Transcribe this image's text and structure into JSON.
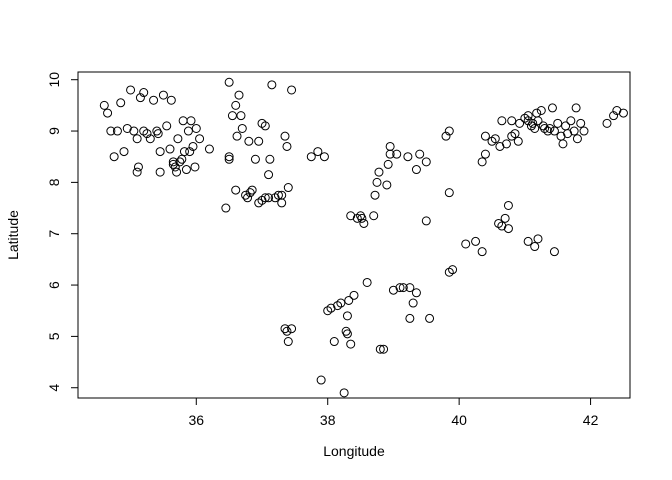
{
  "chart_data": {
    "type": "scatter",
    "title": "",
    "xlabel": "Longitude",
    "ylabel": "Latitude",
    "xlim": [
      34.2,
      42.6
    ],
    "ylim": [
      3.8,
      10.15
    ],
    "xticks": [
      36,
      38,
      40,
      42
    ],
    "yticks": [
      4,
      5,
      6,
      7,
      8,
      9,
      10
    ],
    "grid": false,
    "legend": "none",
    "marker": "open-circle",
    "points": [
      [
        34.6,
        9.5
      ],
      [
        34.65,
        9.35
      ],
      [
        34.7,
        9.0
      ],
      [
        34.75,
        8.5
      ],
      [
        34.8,
        9.0
      ],
      [
        34.85,
        9.55
      ],
      [
        34.9,
        8.6
      ],
      [
        34.95,
        9.05
      ],
      [
        35.0,
        9.8
      ],
      [
        35.05,
        9.0
      ],
      [
        35.1,
        8.85
      ],
      [
        35.1,
        8.2
      ],
      [
        35.12,
        8.3
      ],
      [
        35.15,
        9.65
      ],
      [
        35.2,
        9.75
      ],
      [
        35.2,
        9.0
      ],
      [
        35.25,
        8.95
      ],
      [
        35.3,
        8.85
      ],
      [
        35.35,
        9.6
      ],
      [
        35.4,
        9.0
      ],
      [
        35.42,
        8.95
      ],
      [
        35.45,
        8.6
      ],
      [
        35.45,
        8.2
      ],
      [
        35.5,
        9.7
      ],
      [
        35.55,
        9.1
      ],
      [
        35.6,
        8.65
      ],
      [
        35.62,
        9.6
      ],
      [
        35.65,
        8.4
      ],
      [
        35.65,
        8.35
      ],
      [
        35.68,
        8.3
      ],
      [
        35.7,
        8.2
      ],
      [
        35.72,
        8.85
      ],
      [
        35.75,
        8.4
      ],
      [
        35.78,
        8.45
      ],
      [
        35.8,
        9.2
      ],
      [
        35.82,
        8.6
      ],
      [
        35.85,
        8.25
      ],
      [
        35.88,
        9.0
      ],
      [
        35.9,
        8.6
      ],
      [
        35.92,
        9.2
      ],
      [
        35.95,
        8.7
      ],
      [
        35.98,
        8.3
      ],
      [
        36.0,
        9.05
      ],
      [
        36.05,
        8.85
      ],
      [
        36.2,
        8.65
      ],
      [
        36.5,
        9.95
      ],
      [
        36.5,
        8.5
      ],
      [
        36.5,
        8.45
      ],
      [
        36.45,
        7.5
      ],
      [
        36.55,
        9.3
      ],
      [
        36.6,
        9.5
      ],
      [
        36.62,
        8.9
      ],
      [
        36.65,
        9.7
      ],
      [
        36.68,
        9.3
      ],
      [
        36.7,
        9.05
      ],
      [
        36.6,
        7.85
      ],
      [
        36.75,
        7.75
      ],
      [
        36.78,
        7.7
      ],
      [
        36.8,
        8.8
      ],
      [
        36.82,
        7.8
      ],
      [
        36.85,
        7.85
      ],
      [
        36.9,
        8.45
      ],
      [
        36.95,
        8.8
      ],
      [
        36.95,
        7.6
      ],
      [
        37.0,
        9.15
      ],
      [
        37.0,
        7.65
      ],
      [
        37.05,
        9.1
      ],
      [
        37.05,
        7.7
      ],
      [
        37.1,
        7.7
      ],
      [
        37.1,
        8.15
      ],
      [
        37.12,
        8.45
      ],
      [
        37.15,
        9.9
      ],
      [
        37.2,
        7.7
      ],
      [
        37.25,
        7.75
      ],
      [
        37.3,
        7.75
      ],
      [
        37.3,
        7.6
      ],
      [
        37.35,
        8.9
      ],
      [
        37.38,
        8.7
      ],
      [
        37.4,
        7.9
      ],
      [
        37.45,
        9.8
      ],
      [
        37.35,
        5.15
      ],
      [
        37.38,
        5.1
      ],
      [
        37.4,
        4.9
      ],
      [
        37.45,
        5.15
      ],
      [
        37.75,
        8.5
      ],
      [
        37.85,
        8.6
      ],
      [
        37.95,
        8.5
      ],
      [
        37.9,
        4.15
      ],
      [
        38.0,
        5.5
      ],
      [
        38.05,
        5.55
      ],
      [
        38.1,
        4.9
      ],
      [
        38.15,
        5.6
      ],
      [
        38.2,
        5.65
      ],
      [
        38.25,
        3.9
      ],
      [
        38.28,
        5.1
      ],
      [
        38.3,
        5.05
      ],
      [
        38.3,
        5.4
      ],
      [
        38.32,
        5.7
      ],
      [
        38.35,
        4.85
      ],
      [
        38.4,
        5.8
      ],
      [
        38.35,
        7.35
      ],
      [
        38.45,
        7.3
      ],
      [
        38.5,
        7.35
      ],
      [
        38.52,
        7.3
      ],
      [
        38.55,
        7.2
      ],
      [
        38.6,
        6.05
      ],
      [
        38.7,
        7.35
      ],
      [
        38.72,
        7.75
      ],
      [
        38.75,
        8.0
      ],
      [
        38.78,
        8.2
      ],
      [
        38.8,
        4.75
      ],
      [
        38.85,
        4.75
      ],
      [
        38.9,
        7.95
      ],
      [
        38.92,
        8.35
      ],
      [
        38.95,
        8.55
      ],
      [
        38.95,
        8.7
      ],
      [
        39.0,
        5.9
      ],
      [
        39.05,
        8.55
      ],
      [
        39.1,
        5.95
      ],
      [
        39.15,
        5.95
      ],
      [
        39.22,
        8.5
      ],
      [
        39.25,
        5.35
      ],
      [
        39.25,
        5.95
      ],
      [
        39.3,
        5.65
      ],
      [
        39.35,
        5.85
      ],
      [
        39.35,
        8.25
      ],
      [
        39.4,
        8.55
      ],
      [
        39.5,
        7.25
      ],
      [
        39.55,
        5.35
      ],
      [
        39.5,
        8.4
      ],
      [
        39.8,
        8.9
      ],
      [
        39.85,
        9.0
      ],
      [
        39.85,
        7.8
      ],
      [
        39.85,
        6.25
      ],
      [
        39.9,
        6.3
      ],
      [
        40.1,
        6.8
      ],
      [
        40.25,
        6.85
      ],
      [
        40.35,
        6.65
      ],
      [
        40.35,
        8.4
      ],
      [
        40.4,
        8.9
      ],
      [
        40.4,
        8.55
      ],
      [
        40.5,
        8.8
      ],
      [
        40.55,
        8.85
      ],
      [
        40.6,
        7.2
      ],
      [
        40.62,
        8.7
      ],
      [
        40.65,
        9.2
      ],
      [
        40.65,
        7.15
      ],
      [
        40.7,
        7.3
      ],
      [
        40.72,
        8.75
      ],
      [
        40.75,
        7.1
      ],
      [
        40.75,
        7.55
      ],
      [
        40.8,
        8.9
      ],
      [
        40.8,
        9.2
      ],
      [
        40.85,
        8.95
      ],
      [
        40.9,
        8.8
      ],
      [
        40.92,
        9.15
      ],
      [
        41.0,
        9.25
      ],
      [
        41.05,
        9.3
      ],
      [
        41.05,
        9.2
      ],
      [
        41.1,
        9.1
      ],
      [
        41.12,
        9.15
      ],
      [
        41.15,
        9.05
      ],
      [
        41.18,
        9.35
      ],
      [
        41.2,
        9.2
      ],
      [
        41.25,
        9.4
      ],
      [
        41.28,
        9.1
      ],
      [
        41.3,
        9.05
      ],
      [
        41.35,
        9.0
      ],
      [
        41.38,
        9.05
      ],
      [
        41.42,
        9.45
      ],
      [
        41.45,
        9.0
      ],
      [
        41.5,
        9.15
      ],
      [
        41.55,
        8.9
      ],
      [
        41.58,
        8.75
      ],
      [
        41.62,
        9.1
      ],
      [
        41.65,
        8.95
      ],
      [
        41.7,
        9.2
      ],
      [
        41.75,
        9.0
      ],
      [
        41.78,
        9.45
      ],
      [
        41.8,
        8.85
      ],
      [
        41.85,
        9.15
      ],
      [
        41.9,
        9.0
      ],
      [
        41.05,
        6.85
      ],
      [
        41.15,
        6.75
      ],
      [
        41.2,
        6.9
      ],
      [
        41.45,
        6.65
      ],
      [
        42.25,
        9.15
      ],
      [
        42.35,
        9.3
      ],
      [
        42.4,
        9.4
      ],
      [
        42.5,
        9.35
      ]
    ]
  }
}
